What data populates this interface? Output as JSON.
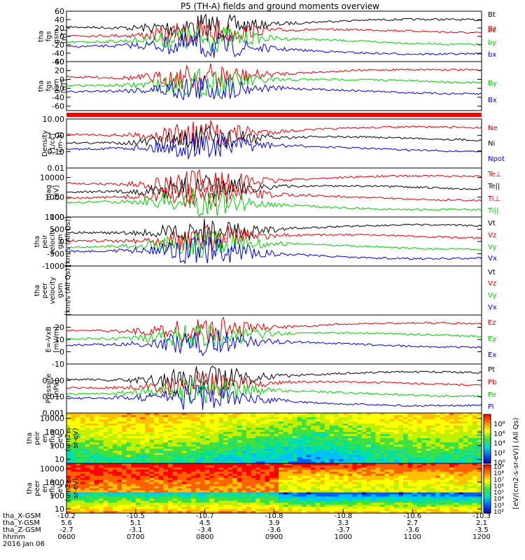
{
  "title": "P5 (TH-A) fields and ground moments overview",
  "colors": {
    "black": "#000000",
    "red": "#e00000",
    "green": "#00cc00",
    "blue": "#0000e0"
  },
  "chart_data": [
    {
      "type": "line",
      "ylabel": [
        "tha",
        "fgs",
        "gsm",
        "[nT]"
      ],
      "ylim": [
        -60,
        60
      ],
      "ticks": [
        "60",
        "40",
        "20",
        "0",
        "-20",
        "-40",
        "-60"
      ],
      "tick_values": [
        60,
        40,
        20,
        0,
        -20,
        -40,
        -60
      ],
      "series": [
        {
          "name": "Bt",
          "color": "black"
        },
        {
          "name": "bz",
          "color": "red"
        },
        {
          "name": "by",
          "color": "green"
        },
        {
          "name": "bx",
          "color": "blue"
        }
      ]
    },
    {
      "type": "line",
      "ylabel": [
        "tha",
        "fgs",
        "gsm",
        "[nT]"
      ],
      "ylim": [
        -70,
        40
      ],
      "ticks": [
        "40",
        "20",
        "0",
        "-20",
        "-40",
        "-60"
      ],
      "tick_values": [
        40,
        20,
        0,
        -20,
        -40,
        -60
      ],
      "series": [
        {
          "name": "Bz",
          "color": "red"
        },
        {
          "name": "By",
          "color": "green"
        },
        {
          "name": "Bx",
          "color": "blue"
        }
      ]
    },
    {
      "type": "line",
      "scale": "log",
      "ylabel": [
        "Density",
        "[1/cc]",
        "[cm-3]"
      ],
      "ylim": [
        0.01,
        10
      ],
      "ticks": [
        "10.00",
        "1.00",
        "0.10",
        "0.01"
      ],
      "tick_values": [
        10,
        1,
        0.1,
        0.01
      ],
      "series": [
        {
          "name": "Ne",
          "color": "red"
        },
        {
          "name": "Ni",
          "color": "black"
        },
        {
          "name": "Npot",
          "color": "blue"
        }
      ]
    },
    {
      "type": "line",
      "scale": "log",
      "ylabel": [
        "mag",
        "[eV]"
      ],
      "ylim": [
        100,
        30000
      ],
      "ticks": [
        "10000",
        "1000",
        "100"
      ],
      "tick_values": [
        10000,
        1000,
        100
      ],
      "series": [
        {
          "name": "Te⊥",
          "color": "red"
        },
        {
          "name": "Te||",
          "color": "black"
        },
        {
          "name": "Ti⊥",
          "color": "red"
        },
        {
          "name": "Ti||",
          "color": "green"
        }
      ]
    },
    {
      "type": "line",
      "ylabel": [
        "tha",
        "peir",
        "velocity",
        "gsm",
        "[km/s (All Qs)]"
      ],
      "ylim": [
        -1000,
        1000
      ],
      "ticks": [
        "1000",
        "500",
        "0",
        "-500",
        "-1000"
      ],
      "tick_values": [
        1000,
        500,
        0,
        -500,
        -1000
      ],
      "series": [
        {
          "name": "Vt",
          "color": "black"
        },
        {
          "name": "Vz",
          "color": "red"
        },
        {
          "name": "Vy",
          "color": "green"
        },
        {
          "name": "Vx",
          "color": "blue"
        }
      ]
    },
    {
      "type": "line",
      "ylabel": [
        "tha",
        "peer",
        "velocity",
        "gsm",
        "[km/s (All Qs)]"
      ],
      "ylim": [
        -1000,
        1000
      ],
      "ticks": [],
      "tick_values": [],
      "series": [
        {
          "name": "Vt",
          "color": "black"
        },
        {
          "name": "Vz",
          "color": "red"
        },
        {
          "name": "Vy",
          "color": "green"
        },
        {
          "name": "Vx",
          "color": "blue"
        }
      ]
    },
    {
      "type": "line",
      "ylabel": [
        "E=-VxB",
        "[mV/m]"
      ],
      "ylim": [
        -10,
        30
      ],
      "ticks": [
        "20",
        "10",
        "0",
        "-10"
      ],
      "tick_values": [
        20,
        10,
        0,
        -10
      ],
      "series": [
        {
          "name": "Ez",
          "color": "red"
        },
        {
          "name": "Ey",
          "color": "green"
        },
        {
          "name": "Ex",
          "color": "blue"
        }
      ]
    },
    {
      "type": "line",
      "scale": "log",
      "ylabel": [
        "Pressure",
        "[nPa]"
      ],
      "ylim": [
        0.001,
        1
      ],
      "ticks": [
        "0.100",
        "0.010",
        "0.001"
      ],
      "tick_values": [
        0.1,
        0.01,
        0.001
      ],
      "series": [
        {
          "name": "Pt",
          "color": "black"
        },
        {
          "name": "Pb",
          "color": "red"
        },
        {
          "name": "Pe",
          "color": "green"
        },
        {
          "name": "Pi",
          "color": "blue"
        }
      ]
    },
    {
      "type": "heatmap",
      "scale": "log",
      "ylabel": [
        "tha",
        "peir",
        "en",
        "eflux",
        "eV",
        "(cm2-s-",
        "sr-eV)"
      ],
      "ylim": [
        5,
        25000
      ],
      "ticks": [
        "10000",
        "1000",
        "100",
        "10"
      ],
      "tick_values": [
        10000,
        1000,
        100,
        10
      ]
    },
    {
      "type": "heatmap",
      "scale": "log",
      "ylabel": [
        "tha",
        "peer",
        "en",
        "eflux",
        "eV",
        "(cm2-s-",
        "sr-eV)"
      ],
      "ylim": [
        5,
        25000
      ],
      "ticks": [
        "10000",
        "1000",
        "100",
        "10"
      ],
      "tick_values": [
        10000,
        1000,
        100,
        10
      ]
    }
  ],
  "colorbar": {
    "label": "[eV/(cm2-s-sr-eV)] (All Qs)",
    "upper_ticks": [
      "10⁸",
      "10⁶",
      "10⁴",
      "10²",
      "10⁰"
    ],
    "lower_ticks": [
      "10⁹",
      "10⁸",
      "10⁷",
      "10⁶",
      "10⁵",
      "10⁴",
      "10³",
      "10²"
    ]
  },
  "x_axis": {
    "hours": [
      "0600",
      "0700",
      "0800",
      "0900",
      "1000",
      "1100",
      "1200"
    ],
    "row_labels": [
      "tha_X-GSM",
      "tha_Y-GSM",
      "tha_Z-GSM",
      "hhmm",
      "2016 Jan 06"
    ],
    "x_gsm": [
      "-10.2",
      "-10.5",
      "-10.7",
      "-10.8",
      "-10.8",
      "-10.6",
      "-10.3"
    ],
    "y_gsm": [
      "5.6",
      "5.1",
      "4.5",
      "3.9",
      "3.3",
      "2.7",
      "2.1"
    ],
    "z_gsm": [
      "-2.7",
      "-3.1",
      "-3.4",
      "-3.6",
      "-3.7",
      "-3.6",
      "-3.5"
    ]
  }
}
